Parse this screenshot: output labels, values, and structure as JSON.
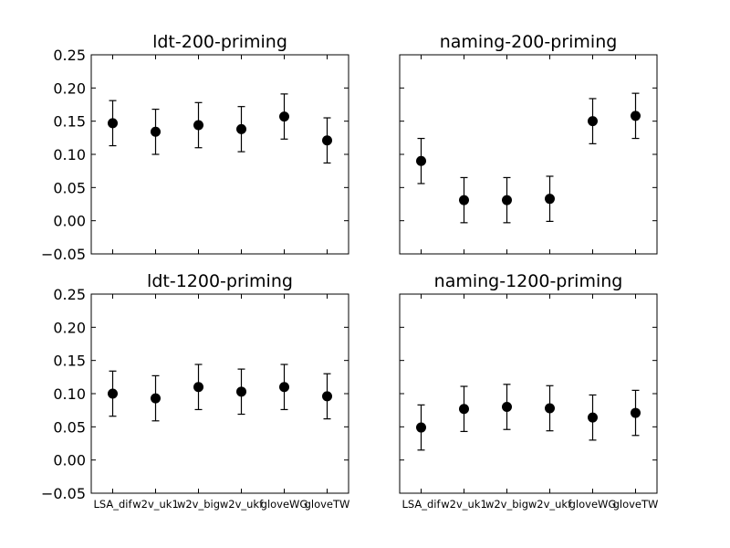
{
  "chart_data": [
    {
      "type": "scatter",
      "title": "ldt-200-priming",
      "categories": [
        "LSA_dif",
        "w2v_uk1",
        "w2v_big",
        "w2v_ukf",
        "gloveWG",
        "gloveTW"
      ],
      "values": [
        0.147,
        0.134,
        0.144,
        0.138,
        0.157,
        0.121
      ],
      "errors": [
        0.034,
        0.034,
        0.034,
        0.034,
        0.034,
        0.034
      ],
      "ylim": [
        -0.05,
        0.25
      ],
      "yticks": [
        "0.25",
        "0.20",
        "0.15",
        "0.10",
        "0.05",
        "0.00",
        "−0.05"
      ],
      "show_yticklabels": true,
      "show_xticklabels": false
    },
    {
      "type": "scatter",
      "title": "naming-200-priming",
      "categories": [
        "LSA_dif",
        "w2v_uk1",
        "w2v_big",
        "w2v_ukf",
        "gloveWG",
        "gloveTW"
      ],
      "values": [
        0.09,
        0.031,
        0.031,
        0.033,
        0.15,
        0.158
      ],
      "errors": [
        0.034,
        0.034,
        0.034,
        0.034,
        0.034,
        0.034
      ],
      "ylim": [
        -0.05,
        0.25
      ],
      "yticks": [
        "0.25",
        "0.20",
        "0.15",
        "0.10",
        "0.05",
        "0.00",
        "−0.05"
      ],
      "show_yticklabels": false,
      "show_xticklabels": false
    },
    {
      "type": "scatter",
      "title": "ldt-1200-priming",
      "categories": [
        "LSA_dif",
        "w2v_uk1",
        "w2v_big",
        "w2v_ukf",
        "gloveWG",
        "gloveTW"
      ],
      "values": [
        0.1,
        0.093,
        0.11,
        0.103,
        0.11,
        0.096
      ],
      "errors": [
        0.034,
        0.034,
        0.034,
        0.034,
        0.034,
        0.034
      ],
      "ylim": [
        -0.05,
        0.25
      ],
      "yticks": [
        "0.25",
        "0.20",
        "0.15",
        "0.10",
        "0.05",
        "0.00",
        "−0.05"
      ],
      "show_yticklabels": true,
      "show_xticklabels": true
    },
    {
      "type": "scatter",
      "title": "naming-1200-priming",
      "categories": [
        "LSA_dif",
        "w2v_uk1",
        "w2v_big",
        "w2v_ukf",
        "gloveWG",
        "gloveTW"
      ],
      "values": [
        0.049,
        0.077,
        0.08,
        0.078,
        0.064,
        0.071
      ],
      "errors": [
        0.034,
        0.034,
        0.034,
        0.034,
        0.034,
        0.034
      ],
      "ylim": [
        -0.05,
        0.25
      ],
      "yticks": [
        "0.25",
        "0.20",
        "0.15",
        "0.10",
        "0.05",
        "0.00",
        "−0.05"
      ],
      "show_yticklabels": false,
      "show_xticklabels": true
    }
  ],
  "colors": {
    "marker": "#000000",
    "frame": "#000000"
  }
}
